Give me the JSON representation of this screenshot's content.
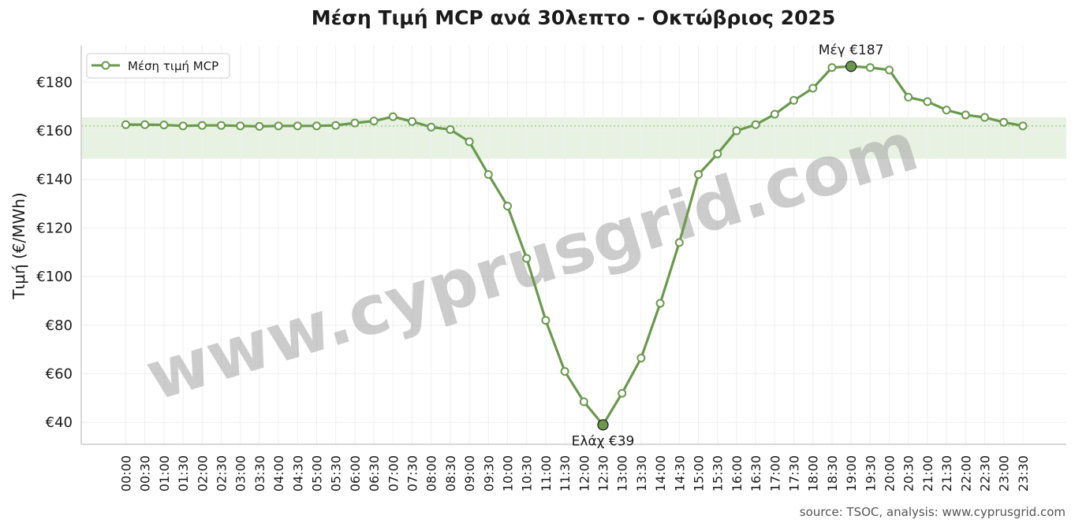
{
  "chart_data": {
    "type": "line",
    "title": "Μέση Τιμή MCP ανά 30λεπτο - Οκτώβριος 2025",
    "xlabel": "",
    "ylabel": "Τιμή (€/MWh)",
    "categories": [
      "00:00",
      "00:30",
      "01:00",
      "01:30",
      "02:00",
      "02:30",
      "03:00",
      "03:30",
      "04:00",
      "04:30",
      "05:00",
      "05:30",
      "06:00",
      "06:30",
      "07:00",
      "07:30",
      "08:00",
      "08:30",
      "09:00",
      "09:30",
      "10:00",
      "10:30",
      "11:00",
      "11:30",
      "12:00",
      "12:30",
      "13:00",
      "13:30",
      "14:00",
      "14:30",
      "15:00",
      "15:30",
      "16:00",
      "16:30",
      "17:00",
      "17:30",
      "18:00",
      "18:30",
      "19:00",
      "19:30",
      "20:00",
      "20:30",
      "21:00",
      "21:30",
      "22:00",
      "22:30",
      "23:00",
      "23:30"
    ],
    "series": [
      {
        "name": "Μέση τιμή MCP",
        "values": [
          162.5,
          162.5,
          162.4,
          162.0,
          162.2,
          162.2,
          162.0,
          161.8,
          162.0,
          162.0,
          162.0,
          162.2,
          163.2,
          164.0,
          165.8,
          163.8,
          161.5,
          160.5,
          155.5,
          142.0,
          129.0,
          107.5,
          82.0,
          61.0,
          48.5,
          39.0,
          52.0,
          66.5,
          89.0,
          114.0,
          142.0,
          150.5,
          160.0,
          162.5,
          166.8,
          172.5,
          177.5,
          186.0,
          186.5,
          186.0,
          185.0,
          173.8,
          172.0,
          168.5,
          166.5,
          165.5,
          163.5,
          162.0
        ],
        "color": "#6a994e"
      }
    ],
    "ylim": [
      31,
      195
    ],
    "yticks": [
      40,
      60,
      80,
      100,
      120,
      140,
      160,
      180
    ],
    "ytick_prefix": "€",
    "grid": true,
    "legend": "top-left",
    "mean_line": 162.0,
    "band": [
      148.5,
      165.5
    ],
    "band_color": "#e8f2e3",
    "annotations": {
      "max": {
        "label": "Μέγ €187",
        "index": 38
      },
      "min": {
        "label": "Ελάχ €39",
        "index": 25
      }
    },
    "watermark": "www.cyprusgrid.com",
    "source": "source: TSOC, analysis: www.cyprusgrid.com"
  }
}
